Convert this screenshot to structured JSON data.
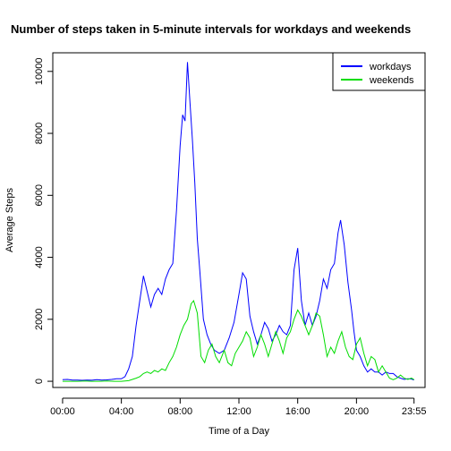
{
  "chart_data": {
    "type": "line",
    "title": "Number of steps taken in 5-minute intervals for workdays and weekends",
    "xlabel": "Time of a Day",
    "ylabel": "Average Steps",
    "x_ticks": [
      {
        "value": 0,
        "label": "00:00"
      },
      {
        "value": 240,
        "label": "04:00"
      },
      {
        "value": 480,
        "label": "08:00"
      },
      {
        "value": 720,
        "label": "12:00"
      },
      {
        "value": 960,
        "label": "16:00"
      },
      {
        "value": 1200,
        "label": "20:00"
      },
      {
        "value": 1435,
        "label": "23:55"
      }
    ],
    "y_ticks": [
      0,
      2000,
      4000,
      6000,
      8000,
      10000
    ],
    "ylim": [
      -200,
      10600
    ],
    "xlim": [
      -40,
      1480
    ],
    "legend_position": "top-right",
    "grid": false,
    "series": [
      {
        "name": "workdays",
        "color": "#0000ff",
        "points": [
          [
            0,
            50
          ],
          [
            20,
            60
          ],
          [
            40,
            40
          ],
          [
            60,
            40
          ],
          [
            80,
            30
          ],
          [
            100,
            40
          ],
          [
            120,
            35
          ],
          [
            140,
            50
          ],
          [
            160,
            40
          ],
          [
            180,
            45
          ],
          [
            200,
            60
          ],
          [
            220,
            80
          ],
          [
            240,
            80
          ],
          [
            255,
            150
          ],
          [
            270,
            400
          ],
          [
            285,
            800
          ],
          [
            300,
            1800
          ],
          [
            315,
            2600
          ],
          [
            330,
            3400
          ],
          [
            345,
            2900
          ],
          [
            360,
            2400
          ],
          [
            375,
            2800
          ],
          [
            390,
            3000
          ],
          [
            405,
            2800
          ],
          [
            420,
            3300
          ],
          [
            435,
            3600
          ],
          [
            450,
            3800
          ],
          [
            465,
            5500
          ],
          [
            480,
            7600
          ],
          [
            490,
            8600
          ],
          [
            500,
            8400
          ],
          [
            510,
            10300
          ],
          [
            520,
            9000
          ],
          [
            530,
            7800
          ],
          [
            540,
            6400
          ],
          [
            550,
            4600
          ],
          [
            560,
            3600
          ],
          [
            575,
            2000
          ],
          [
            590,
            1500
          ],
          [
            605,
            1200
          ],
          [
            620,
            1000
          ],
          [
            640,
            900
          ],
          [
            660,
            1000
          ],
          [
            680,
            1400
          ],
          [
            700,
            1900
          ],
          [
            720,
            2800
          ],
          [
            735,
            3500
          ],
          [
            750,
            3300
          ],
          [
            765,
            2100
          ],
          [
            780,
            1600
          ],
          [
            795,
            1200
          ],
          [
            810,
            1500
          ],
          [
            825,
            1900
          ],
          [
            840,
            1700
          ],
          [
            855,
            1300
          ],
          [
            870,
            1500
          ],
          [
            885,
            1800
          ],
          [
            900,
            1600
          ],
          [
            915,
            1500
          ],
          [
            930,
            1800
          ],
          [
            945,
            3600
          ],
          [
            960,
            4300
          ],
          [
            975,
            2600
          ],
          [
            990,
            1800
          ],
          [
            1005,
            2200
          ],
          [
            1020,
            1800
          ],
          [
            1035,
            2100
          ],
          [
            1050,
            2600
          ],
          [
            1065,
            3300
          ],
          [
            1080,
            3000
          ],
          [
            1095,
            3600
          ],
          [
            1110,
            3800
          ],
          [
            1125,
            4800
          ],
          [
            1135,
            5200
          ],
          [
            1150,
            4400
          ],
          [
            1165,
            3200
          ],
          [
            1180,
            2300
          ],
          [
            1190,
            1600
          ],
          [
            1200,
            1000
          ],
          [
            1215,
            800
          ],
          [
            1230,
            500
          ],
          [
            1245,
            300
          ],
          [
            1260,
            400
          ],
          [
            1275,
            300
          ],
          [
            1290,
            300
          ],
          [
            1305,
            200
          ],
          [
            1320,
            300
          ],
          [
            1335,
            250
          ],
          [
            1350,
            250
          ],
          [
            1365,
            150
          ],
          [
            1380,
            100
          ],
          [
            1395,
            60
          ],
          [
            1410,
            80
          ],
          [
            1425,
            70
          ],
          [
            1435,
            40
          ]
        ]
      },
      {
        "name": "weekends",
        "color": "#00dd00",
        "points": [
          [
            0,
            0
          ],
          [
            30,
            0
          ],
          [
            60,
            0
          ],
          [
            90,
            10
          ],
          [
            120,
            0
          ],
          [
            150,
            0
          ],
          [
            180,
            10
          ],
          [
            210,
            0
          ],
          [
            240,
            0
          ],
          [
            270,
            20
          ],
          [
            300,
            100
          ],
          [
            315,
            150
          ],
          [
            330,
            250
          ],
          [
            345,
            300
          ],
          [
            360,
            250
          ],
          [
            375,
            350
          ],
          [
            390,
            300
          ],
          [
            405,
            400
          ],
          [
            420,
            350
          ],
          [
            435,
            600
          ],
          [
            450,
            800
          ],
          [
            465,
            1100
          ],
          [
            480,
            1500
          ],
          [
            495,
            1800
          ],
          [
            510,
            2000
          ],
          [
            525,
            2500
          ],
          [
            535,
            2600
          ],
          [
            550,
            2200
          ],
          [
            565,
            800
          ],
          [
            580,
            600
          ],
          [
            595,
            1000
          ],
          [
            610,
            1200
          ],
          [
            625,
            800
          ],
          [
            640,
            600
          ],
          [
            660,
            1000
          ],
          [
            675,
            600
          ],
          [
            690,
            500
          ],
          [
            705,
            900
          ],
          [
            720,
            1100
          ],
          [
            735,
            1300
          ],
          [
            750,
            1600
          ],
          [
            765,
            1400
          ],
          [
            780,
            800
          ],
          [
            795,
            1100
          ],
          [
            810,
            1500
          ],
          [
            825,
            1200
          ],
          [
            840,
            800
          ],
          [
            855,
            1200
          ],
          [
            870,
            1600
          ],
          [
            885,
            1300
          ],
          [
            900,
            900
          ],
          [
            915,
            1400
          ],
          [
            930,
            1600
          ],
          [
            945,
            2000
          ],
          [
            960,
            2300
          ],
          [
            975,
            2100
          ],
          [
            990,
            1800
          ],
          [
            1005,
            1500
          ],
          [
            1020,
            1800
          ],
          [
            1035,
            2200
          ],
          [
            1050,
            2100
          ],
          [
            1065,
            1500
          ],
          [
            1080,
            800
          ],
          [
            1095,
            1100
          ],
          [
            1110,
            900
          ],
          [
            1125,
            1300
          ],
          [
            1140,
            1600
          ],
          [
            1155,
            1100
          ],
          [
            1170,
            800
          ],
          [
            1185,
            700
          ],
          [
            1200,
            1200
          ],
          [
            1215,
            1400
          ],
          [
            1230,
            900
          ],
          [
            1245,
            500
          ],
          [
            1260,
            800
          ],
          [
            1275,
            700
          ],
          [
            1290,
            300
          ],
          [
            1305,
            500
          ],
          [
            1320,
            300
          ],
          [
            1335,
            100
          ],
          [
            1350,
            50
          ],
          [
            1365,
            100
          ],
          [
            1380,
            200
          ],
          [
            1395,
            100
          ],
          [
            1410,
            60
          ],
          [
            1425,
            100
          ],
          [
            1435,
            50
          ]
        ]
      }
    ]
  }
}
